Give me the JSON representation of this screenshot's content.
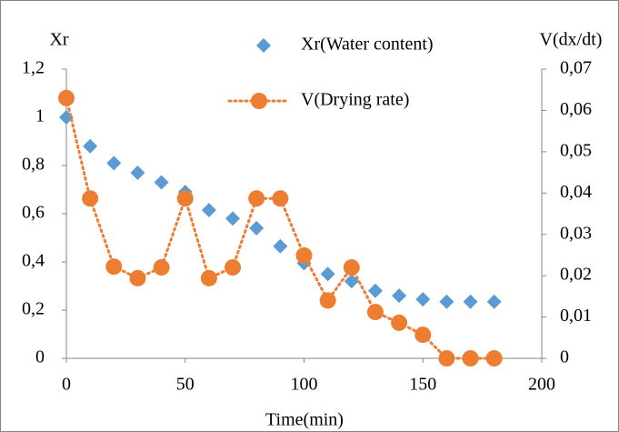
{
  "chart_data": {
    "type": "scatter-line",
    "x_label": "Time(min)",
    "y_label": "Xr",
    "y2_label": "V(dx/dt)",
    "x": [
      0,
      10,
      20,
      30,
      40,
      50,
      60,
      70,
      80,
      90,
      100,
      110,
      120,
      130,
      140,
      150,
      160,
      170,
      180
    ],
    "series": [
      {
        "name": "Xr(Water content)",
        "color": "#5b9bd5",
        "marker": "diamond",
        "line": false,
        "values": [
          1.0,
          0.88,
          0.81,
          0.77,
          0.73,
          0.69,
          0.615,
          0.58,
          0.54,
          0.465,
          0.395,
          0.35,
          0.32,
          0.28,
          0.26,
          0.245,
          0.235,
          0.235,
          0.235
        ]
      },
      {
        "name": "V(Drying rate)",
        "color": "#ed7d31",
        "marker": "circle",
        "line": true,
        "axis": "y2",
        "values": [
          0.063,
          0.0387,
          0.0222,
          0.0194,
          0.022,
          0.0387,
          0.0194,
          0.022,
          0.0387,
          0.0387,
          0.0249,
          0.014,
          0.022,
          0.0112,
          0.0086,
          0.0057,
          0,
          0,
          0
        ]
      }
    ],
    "xlim": [
      0,
      200
    ],
    "xticks": [
      0,
      50,
      100,
      150,
      200
    ],
    "ylim": [
      0,
      1.2
    ],
    "yticks": [
      0,
      {
        "value": 0.2,
        "label": "0,2"
      },
      {
        "value": 0.4,
        "label": "0,4"
      },
      {
        "value": 0.6,
        "label": "0,6"
      },
      {
        "value": 0.8,
        "label": "0,8"
      },
      1,
      {
        "value": 1.2,
        "label": "1,2"
      }
    ],
    "y2lim": [
      0,
      0.07
    ],
    "y2ticks": [
      0,
      {
        "value": 0.01,
        "label": "0,01"
      },
      {
        "value": 0.02,
        "label": "0,02"
      },
      {
        "value": 0.03,
        "label": "0,03"
      },
      {
        "value": 0.04,
        "label": "0,04"
      },
      {
        "value": 0.05,
        "label": "0,05"
      },
      {
        "value": 0.06,
        "label": "0,06"
      },
      {
        "value": 0.07,
        "label": "0,07"
      }
    ],
    "grid": false
  }
}
